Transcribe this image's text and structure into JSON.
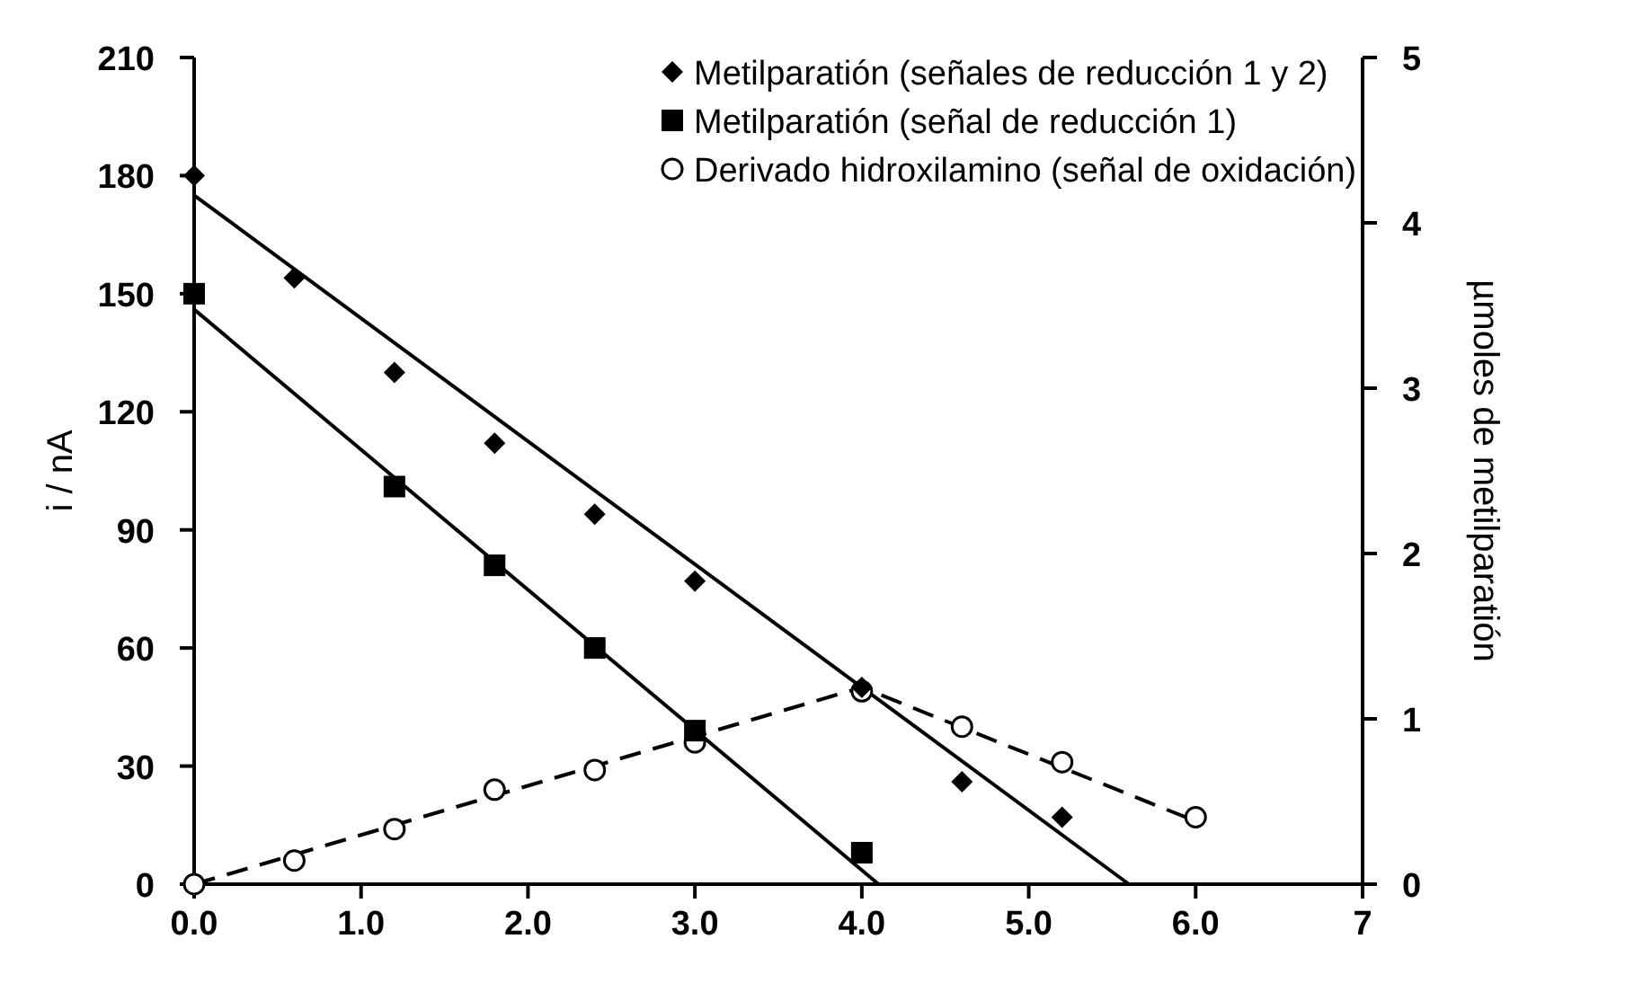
{
  "chart_data": {
    "type": "scatter",
    "ylabel": "i / nA",
    "y2label": "µmoles de metilparatión",
    "xlim": [
      0,
      7
    ],
    "xticks": [
      {
        "value": 0,
        "label": "0.0"
      },
      {
        "value": 1,
        "label": "1.0"
      },
      {
        "value": 2,
        "label": "2.0"
      },
      {
        "value": 3,
        "label": "3.0"
      },
      {
        "value": 4,
        "label": "4.0"
      },
      {
        "value": 5,
        "label": "5.0"
      },
      {
        "value": 6,
        "label": "6.0"
      },
      7
    ],
    "ylim": [
      0,
      210
    ],
    "yticks": [
      0,
      30,
      60,
      90,
      120,
      150,
      180,
      210
    ],
    "y2lim": [
      0,
      5
    ],
    "y2ticks": [
      0,
      1,
      2,
      3,
      4,
      5
    ],
    "legend": "top right",
    "grid": false,
    "series": [
      {
        "name": "Metilparatión (señales de reducción 1 y 2)",
        "color": "#000000",
        "marker": "diamond",
        "x": [
          0,
          0.6,
          1.2,
          1.8,
          2.4,
          3.0,
          4.0,
          4.6,
          5.2
        ],
        "values": [
          180,
          154,
          130,
          112,
          94,
          77,
          50,
          26,
          17
        ]
      },
      {
        "name": "Metilparatión (señal de reducción 1)",
        "color": "#000000",
        "marker": "square",
        "x": [
          0,
          1.2,
          1.8,
          2.4,
          3.0,
          4.0
        ],
        "values": [
          150,
          101,
          81,
          60,
          39,
          8
        ]
      },
      {
        "name": "Derivado hidroxilamino (señal de oxidación)",
        "color": "#000000",
        "marker": "circle",
        "x": [
          0,
          0.6,
          1.2,
          1.8,
          2.4,
          3.0,
          4.0,
          4.6,
          5.2,
          6.0
        ],
        "values": [
          0,
          6,
          14,
          24,
          29,
          36,
          49,
          40,
          31,
          17
        ]
      },
      {
        "type": "line",
        "color": "#000000",
        "line_style": "solid",
        "x": [
          0,
          5.6
        ],
        "values": [
          175,
          0
        ]
      },
      {
        "type": "line",
        "color": "#000000",
        "line_style": "solid",
        "x": [
          0,
          4.1
        ],
        "values": [
          146,
          0
        ]
      },
      {
        "type": "line",
        "color": "#000000",
        "line_style": "dashed",
        "x": [
          0,
          4.0,
          6.0
        ],
        "values": [
          0,
          50,
          16
        ]
      }
    ]
  }
}
